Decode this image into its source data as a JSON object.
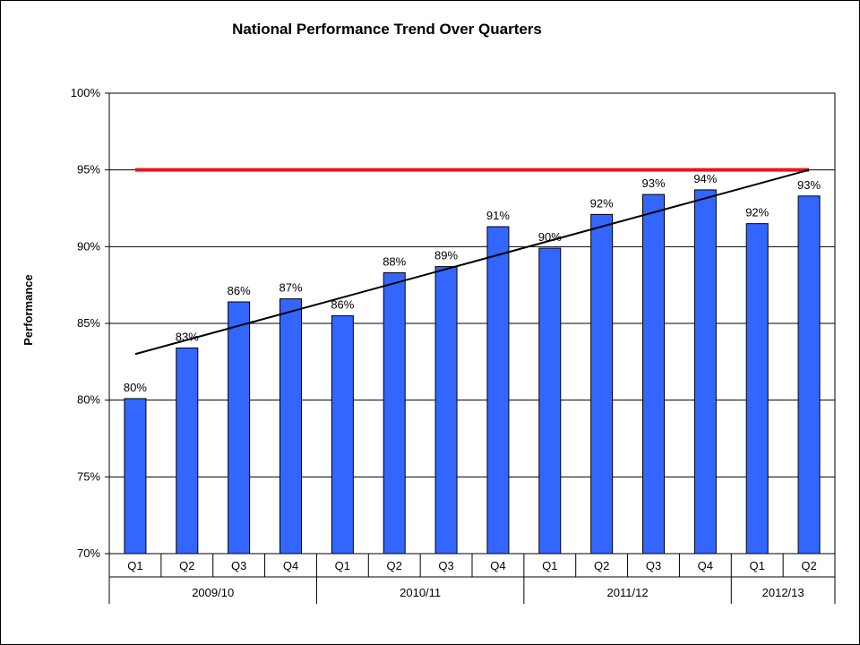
{
  "chart_data": {
    "type": "bar",
    "title": "National Performance Trend Over Quarters",
    "xlabel": "",
    "ylabel": "Performance",
    "ylim": [
      70,
      100
    ],
    "y_ticks": [
      "70%",
      "75%",
      "80%",
      "85%",
      "90%",
      "95%",
      "100%"
    ],
    "grid": true,
    "legend": "none",
    "categories": [
      "Q1",
      "Q2",
      "Q3",
      "Q4",
      "Q1",
      "Q2",
      "Q3",
      "Q4",
      "Q1",
      "Q2",
      "Q3",
      "Q4",
      "Q1",
      "Q2"
    ],
    "groups": [
      {
        "label": "2009/10",
        "count": 4
      },
      {
        "label": "2010/11",
        "count": 4
      },
      {
        "label": "2011/12",
        "count": 4
      },
      {
        "label": "2012/13",
        "count": 2
      }
    ],
    "series": [
      {
        "values": [
          80.1,
          83.4,
          86.4,
          86.6,
          85.5,
          88.3,
          88.7,
          91.3,
          89.9,
          92.1,
          93.4,
          93.7,
          91.5,
          93.3
        ],
        "data_labels": [
          "80%",
          "83%",
          "86%",
          "87%",
          "86%",
          "88%",
          "89%",
          "91%",
          "90%",
          "92%",
          "93%",
          "94%",
          "92%",
          "93%"
        ],
        "color": "#3366ff"
      }
    ],
    "target_line": {
      "value": 95,
      "color": "#e8141e"
    },
    "trendline": {
      "start": 83.0,
      "end": 95.0,
      "color": "#000000"
    }
  }
}
